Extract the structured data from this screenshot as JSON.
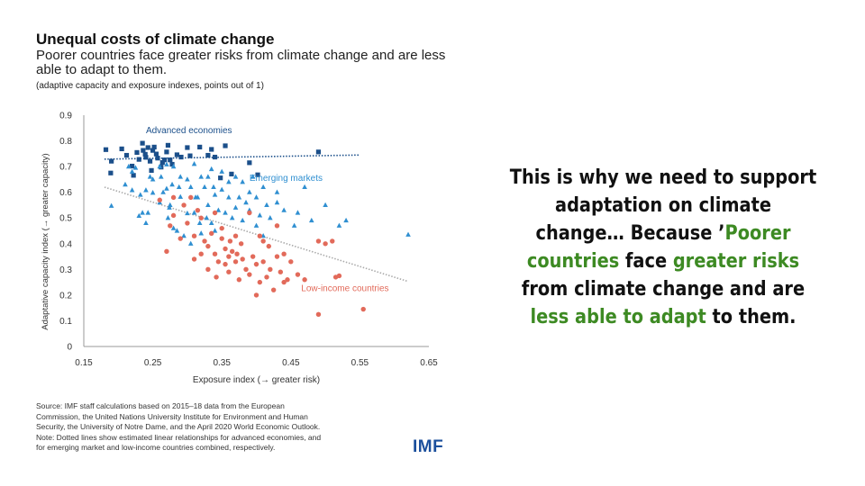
{
  "header": {
    "title": "Unequal costs of climate change",
    "subtitle": "Poorer countries face greater risks from climate change and are less able to adapt to them.",
    "note": "(adaptive capacity and exposure indexes, points out of 1)"
  },
  "source": {
    "lines": [
      "Source: IMF staff calculations based on 2015–18 data from the European",
      "Commission, the United Nations University Institute for Environment and Human",
      "Security, the University of Notre Dame, and the April 2020 World Economic Outlook.",
      "Note: Dotted lines show estimated linear relationships for advanced economies, and",
      "for emerging market and low-income countries combined, respectively."
    ]
  },
  "logo": {
    "text": "IMF"
  },
  "callout": {
    "p1": "This is why we need to support adaptation on climate change… Because ’",
    "p2": "Poorer countries",
    "p3": " face ",
    "p4": "greater risks",
    "p5": " from climate change and are ",
    "p6": "less able to adapt",
    "p7": " to them.",
    "text_color": "#111111",
    "highlight_color": "#3d8a23"
  },
  "chart_data": {
    "type": "scatter",
    "xlabel": "Exposure index (→ greater risk)",
    "ylabel": "Adaptative capacity index (→ greater capacity)",
    "xlim": [
      0.15,
      0.65
    ],
    "ylim": [
      0,
      0.9
    ],
    "xticks": [
      "0.15",
      "0.25",
      "0.35",
      "0.45",
      "0.55",
      "0.65"
    ],
    "yticks": [
      "0",
      "0.1",
      "0.2",
      "0.3",
      "0.4",
      "0.5",
      "0.6",
      "0.7",
      "0.8",
      "0.9"
    ],
    "series": [
      {
        "name": "Advanced economies",
        "marker": "square",
        "color": "#1b4f8a",
        "points": [
          [
            0.182,
            0.766
          ],
          [
            0.189,
            0.675
          ],
          [
            0.19,
            0.721
          ],
          [
            0.205,
            0.769
          ],
          [
            0.212,
            0.744
          ],
          [
            0.22,
            0.702
          ],
          [
            0.222,
            0.666
          ],
          [
            0.227,
            0.755
          ],
          [
            0.23,
            0.728
          ],
          [
            0.235,
            0.791
          ],
          [
            0.236,
            0.763
          ],
          [
            0.239,
            0.748
          ],
          [
            0.24,
            0.736
          ],
          [
            0.243,
            0.774
          ],
          [
            0.246,
            0.721
          ],
          [
            0.248,
            0.685
          ],
          [
            0.25,
            0.763
          ],
          [
            0.252,
            0.776
          ],
          [
            0.255,
            0.749
          ],
          [
            0.257,
            0.733
          ],
          [
            0.262,
            0.698
          ],
          [
            0.264,
            0.716
          ],
          [
            0.267,
            0.726
          ],
          [
            0.27,
            0.757
          ],
          [
            0.272,
            0.783
          ],
          [
            0.275,
            0.726
          ],
          [
            0.278,
            0.709
          ],
          [
            0.285,
            0.746
          ],
          [
            0.291,
            0.737
          ],
          [
            0.3,
            0.774
          ],
          [
            0.304,
            0.742
          ],
          [
            0.318,
            0.776
          ],
          [
            0.33,
            0.744
          ],
          [
            0.335,
            0.767
          ],
          [
            0.34,
            0.737
          ],
          [
            0.348,
            0.656
          ],
          [
            0.355,
            0.781
          ],
          [
            0.364,
            0.671
          ],
          [
            0.39,
            0.715
          ],
          [
            0.402,
            0.668
          ],
          [
            0.49,
            0.757
          ]
        ]
      },
      {
        "name": "Emerging markets",
        "marker": "triangle",
        "color": "#2f8fd1",
        "points": [
          [
            0.19,
            0.547
          ],
          [
            0.21,
            0.63
          ],
          [
            0.215,
            0.7
          ],
          [
            0.22,
            0.608
          ],
          [
            0.22,
            0.68
          ],
          [
            0.225,
            0.695
          ],
          [
            0.23,
            0.508
          ],
          [
            0.232,
            0.59
          ],
          [
            0.235,
            0.52
          ],
          [
            0.24,
            0.48
          ],
          [
            0.24,
            0.608
          ],
          [
            0.243,
            0.52
          ],
          [
            0.246,
            0.66
          ],
          [
            0.25,
            0.598
          ],
          [
            0.25,
            0.65
          ],
          [
            0.26,
            0.56
          ],
          [
            0.26,
            0.7
          ],
          [
            0.262,
            0.66
          ],
          [
            0.265,
            0.6
          ],
          [
            0.27,
            0.708
          ],
          [
            0.27,
            0.614
          ],
          [
            0.272,
            0.5
          ],
          [
            0.274,
            0.54
          ],
          [
            0.275,
            0.55
          ],
          [
            0.278,
            0.63
          ],
          [
            0.28,
            0.7
          ],
          [
            0.28,
            0.46
          ],
          [
            0.285,
            0.45
          ],
          [
            0.288,
            0.62
          ],
          [
            0.29,
            0.582
          ],
          [
            0.29,
            0.66
          ],
          [
            0.295,
            0.43
          ],
          [
            0.3,
            0.65
          ],
          [
            0.3,
            0.518
          ],
          [
            0.305,
            0.62
          ],
          [
            0.305,
            0.4
          ],
          [
            0.31,
            0.52
          ],
          [
            0.31,
            0.71
          ],
          [
            0.312,
            0.58
          ],
          [
            0.315,
            0.58
          ],
          [
            0.318,
            0.48
          ],
          [
            0.32,
            0.44
          ],
          [
            0.32,
            0.66
          ],
          [
            0.325,
            0.62
          ],
          [
            0.328,
            0.5
          ],
          [
            0.33,
            0.55
          ],
          [
            0.33,
            0.66
          ],
          [
            0.335,
            0.48
          ],
          [
            0.335,
            0.69
          ],
          [
            0.338,
            0.62
          ],
          [
            0.34,
            0.45
          ],
          [
            0.34,
            0.59
          ],
          [
            0.345,
            0.53
          ],
          [
            0.35,
            0.61
          ],
          [
            0.35,
            0.68
          ],
          [
            0.355,
            0.52
          ],
          [
            0.36,
            0.58
          ],
          [
            0.36,
            0.64
          ],
          [
            0.365,
            0.5
          ],
          [
            0.37,
            0.54
          ],
          [
            0.37,
            0.66
          ],
          [
            0.375,
            0.58
          ],
          [
            0.38,
            0.64
          ],
          [
            0.38,
            0.49
          ],
          [
            0.385,
            0.56
          ],
          [
            0.39,
            0.53
          ],
          [
            0.39,
            0.6
          ],
          [
            0.395,
            0.66
          ],
          [
            0.4,
            0.47
          ],
          [
            0.4,
            0.58
          ],
          [
            0.405,
            0.51
          ],
          [
            0.41,
            0.62
          ],
          [
            0.41,
            0.43
          ],
          [
            0.415,
            0.55
          ],
          [
            0.42,
            0.5
          ],
          [
            0.43,
            0.56
          ],
          [
            0.43,
            0.6
          ],
          [
            0.44,
            0.53
          ],
          [
            0.455,
            0.47
          ],
          [
            0.46,
            0.52
          ],
          [
            0.47,
            0.62
          ],
          [
            0.48,
            0.49
          ],
          [
            0.5,
            0.55
          ],
          [
            0.52,
            0.47
          ],
          [
            0.53,
            0.49
          ],
          [
            0.62,
            0.435
          ]
        ]
      },
      {
        "name": "Low-income countries",
        "marker": "circle",
        "color": "#e26a5a",
        "points": [
          [
            0.26,
            0.57
          ],
          [
            0.27,
            0.37
          ],
          [
            0.275,
            0.47
          ],
          [
            0.28,
            0.51
          ],
          [
            0.28,
            0.58
          ],
          [
            0.29,
            0.42
          ],
          [
            0.295,
            0.55
          ],
          [
            0.3,
            0.48
          ],
          [
            0.305,
            0.58
          ],
          [
            0.31,
            0.34
          ],
          [
            0.31,
            0.43
          ],
          [
            0.315,
            0.53
          ],
          [
            0.32,
            0.5
          ],
          [
            0.32,
            0.36
          ],
          [
            0.325,
            0.41
          ],
          [
            0.33,
            0.39
          ],
          [
            0.33,
            0.3
          ],
          [
            0.335,
            0.44
          ],
          [
            0.34,
            0.52
          ],
          [
            0.34,
            0.36
          ],
          [
            0.342,
            0.27
          ],
          [
            0.345,
            0.33
          ],
          [
            0.35,
            0.42
          ],
          [
            0.35,
            0.46
          ],
          [
            0.355,
            0.38
          ],
          [
            0.355,
            0.32
          ],
          [
            0.36,
            0.35
          ],
          [
            0.36,
            0.29
          ],
          [
            0.362,
            0.41
          ],
          [
            0.365,
            0.37
          ],
          [
            0.37,
            0.43
          ],
          [
            0.37,
            0.33
          ],
          [
            0.372,
            0.36
          ],
          [
            0.375,
            0.26
          ],
          [
            0.378,
            0.4
          ],
          [
            0.38,
            0.34
          ],
          [
            0.385,
            0.3
          ],
          [
            0.39,
            0.52
          ],
          [
            0.39,
            0.28
          ],
          [
            0.395,
            0.35
          ],
          [
            0.4,
            0.32
          ],
          [
            0.4,
            0.2
          ],
          [
            0.405,
            0.25
          ],
          [
            0.405,
            0.43
          ],
          [
            0.41,
            0.33
          ],
          [
            0.41,
            0.41
          ],
          [
            0.415,
            0.27
          ],
          [
            0.418,
            0.39
          ],
          [
            0.42,
            0.3
          ],
          [
            0.425,
            0.22
          ],
          [
            0.43,
            0.35
          ],
          [
            0.43,
            0.47
          ],
          [
            0.435,
            0.29
          ],
          [
            0.44,
            0.36
          ],
          [
            0.44,
            0.25
          ],
          [
            0.445,
            0.26
          ],
          [
            0.45,
            0.33
          ],
          [
            0.46,
            0.28
          ],
          [
            0.47,
            0.26
          ],
          [
            0.49,
            0.41
          ],
          [
            0.5,
            0.4
          ],
          [
            0.51,
            0.41
          ],
          [
            0.515,
            0.27
          ],
          [
            0.49,
            0.125
          ],
          [
            0.555,
            0.145
          ],
          [
            0.52,
            0.275
          ]
        ]
      }
    ],
    "series_labels": [
      "Advanced economies",
      "Emerging markets",
      "Low-income countries"
    ],
    "trend_lines": [
      {
        "name": "advanced-trend",
        "from": [
          0.18,
          0.729
        ],
        "to": [
          0.55,
          0.745
        ],
        "color": "#1b4f8a"
      },
      {
        "name": "em-lic-trend",
        "from": [
          0.18,
          0.62
        ],
        "to": [
          0.62,
          0.253
        ],
        "color": "#aaaaaa"
      }
    ]
  }
}
